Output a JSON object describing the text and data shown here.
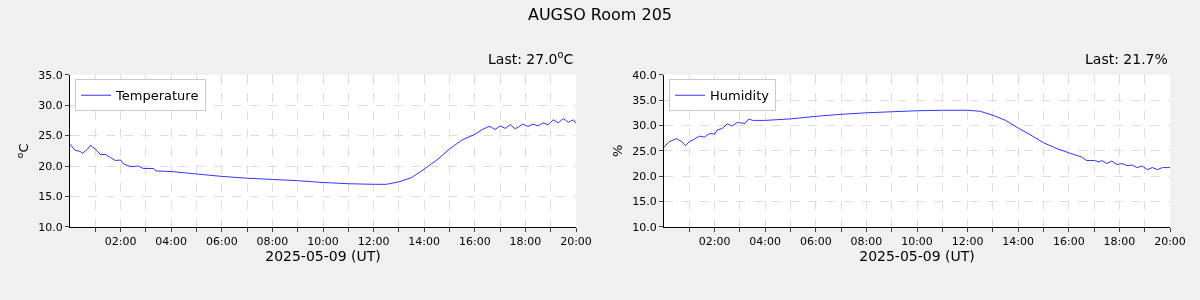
{
  "chart_data": [
    {
      "type": "line",
      "title": "AUGSO Room 205",
      "subtitle": "Last: 27.0$^{o}$C",
      "xlabel": "2025-05-09 (UT)",
      "ylabel": "$^{o}$C",
      "legend": "top left",
      "grid": true,
      "x": [
        0,
        0.2,
        0.4,
        0.5,
        0.7,
        0.8,
        1.0,
        1.2,
        1.4,
        1.6,
        1.8,
        2.0,
        2.1,
        2.4,
        2.7,
        2.9,
        3.3,
        3.4,
        4,
        5,
        6,
        7,
        8,
        9,
        10,
        11,
        12,
        12.5,
        13,
        13.5,
        14,
        14.5,
        15,
        15.5,
        16,
        16.3,
        16.5,
        16.6,
        16.8,
        17.0,
        17.2,
        17.4,
        17.6,
        17.9,
        18.1,
        18.3,
        18.5,
        18.7,
        18.9,
        19.1,
        19.3,
        19.5,
        19.7,
        19.9,
        20
      ],
      "series": [
        {
          "name": "Temperature",
          "color": "#0000ff",
          "values": [
            23.6,
            22.6,
            22.4,
            22.1,
            22.8,
            23.4,
            22.8,
            21.9,
            21.9,
            21.4,
            20.9,
            21.0,
            20.4,
            19.9,
            20.0,
            19.6,
            19.6,
            19.2,
            19.1,
            18.7,
            18.3,
            18.0,
            17.8,
            17.6,
            17.3,
            17.1,
            17.0,
            17.0,
            17.4,
            18.1,
            19.5,
            21.0,
            22.8,
            24.3,
            25.2,
            26.0,
            26.4,
            26.5,
            26.0,
            26.6,
            26.2,
            26.8,
            26.1,
            26.9,
            26.5,
            26.9,
            26.6,
            27.1,
            26.8,
            27.6,
            27.1,
            27.8,
            27.2,
            27.6,
            27.0
          ]
        }
      ],
      "xlim": [
        0,
        20
      ],
      "ylim": [
        10,
        35
      ],
      "xticks": [
        {
          "value": 1,
          "label": null
        },
        {
          "value": 2,
          "label": "02:00"
        },
        {
          "value": 3,
          "label": null
        },
        {
          "value": 4,
          "label": "04:00"
        },
        {
          "value": 5,
          "label": null
        },
        {
          "value": 6,
          "label": "06:00"
        },
        {
          "value": 7,
          "label": null
        },
        {
          "value": 8,
          "label": "08:00"
        },
        {
          "value": 9,
          "label": null
        },
        {
          "value": 10,
          "label": "10:00"
        },
        {
          "value": 11,
          "label": null
        },
        {
          "value": 12,
          "label": "12:00"
        },
        {
          "value": 13,
          "label": null
        },
        {
          "value": 14,
          "label": "14:00"
        },
        {
          "value": 15,
          "label": null
        },
        {
          "value": 16,
          "label": "16:00"
        },
        {
          "value": 17,
          "label": null
        },
        {
          "value": 18,
          "label": "18:00"
        },
        {
          "value": 19,
          "label": null
        },
        {
          "value": 20,
          "label": "20:00"
        }
      ],
      "yticks": [
        {
          "value": 10,
          "label": "10.0"
        },
        {
          "value": 15,
          "label": "15.0"
        },
        {
          "value": 20,
          "label": "20.0"
        },
        {
          "value": 25,
          "label": "25.0"
        },
        {
          "value": 30,
          "label": "30.0"
        },
        {
          "value": 35,
          "label": "35.0"
        }
      ]
    },
    {
      "type": "line",
      "subtitle": "Last: 21.7%",
      "xlabel": "2025-05-09 (UT)",
      "ylabel": "%",
      "legend": "top left",
      "grid": true,
      "x": [
        0,
        0.2,
        0.35,
        0.5,
        0.7,
        0.85,
        1.0,
        1.2,
        1.4,
        1.6,
        1.8,
        2.0,
        2.1,
        2.3,
        2.5,
        2.7,
        2.9,
        3.2,
        3.35,
        3.5,
        4,
        5,
        6,
        7,
        8,
        9,
        10,
        11,
        12,
        12.5,
        13,
        13.5,
        14,
        14.5,
        15,
        15.5,
        16,
        16.5,
        16.7,
        17.0,
        17.2,
        17.3,
        17.5,
        17.7,
        17.9,
        18.1,
        18.3,
        18.5,
        18.7,
        18.9,
        19.1,
        19.3,
        19.5,
        19.7,
        20
      ],
      "series": [
        {
          "name": "Humidity",
          "color": "#0000ff",
          "values": [
            25.7,
            26.8,
            27.1,
            27.4,
            26.8,
            26.0,
            26.8,
            27.3,
            27.9,
            27.7,
            28.4,
            28.3,
            29.1,
            29.4,
            30.3,
            29.9,
            30.6,
            30.4,
            31.3,
            31.0,
            31.0,
            31.3,
            31.8,
            32.2,
            32.5,
            32.7,
            32.9,
            33.0,
            33.0,
            32.8,
            32.0,
            31.0,
            29.5,
            28.1,
            26.6,
            25.5,
            24.6,
            23.8,
            23.1,
            23.1,
            22.8,
            23.1,
            22.5,
            23.0,
            22.3,
            22.5,
            22.1,
            22.2,
            21.7,
            22.0,
            21.3,
            21.7,
            21.3,
            21.7,
            21.7
          ]
        }
      ],
      "xlim": [
        0,
        20
      ],
      "ylim": [
        10,
        40
      ],
      "xticks": [
        {
          "value": 1,
          "label": null
        },
        {
          "value": 2,
          "label": "02:00"
        },
        {
          "value": 3,
          "label": null
        },
        {
          "value": 4,
          "label": "04:00"
        },
        {
          "value": 5,
          "label": null
        },
        {
          "value": 6,
          "label": "06:00"
        },
        {
          "value": 7,
          "label": null
        },
        {
          "value": 8,
          "label": "08:00"
        },
        {
          "value": 9,
          "label": null
        },
        {
          "value": 10,
          "label": "10:00"
        },
        {
          "value": 11,
          "label": null
        },
        {
          "value": 12,
          "label": "12:00"
        },
        {
          "value": 13,
          "label": null
        },
        {
          "value": 14,
          "label": "14:00"
        },
        {
          "value": 15,
          "label": null
        },
        {
          "value": 16,
          "label": "16:00"
        },
        {
          "value": 17,
          "label": null
        },
        {
          "value": 18,
          "label": "18:00"
        },
        {
          "value": 19,
          "label": null
        },
        {
          "value": 20,
          "label": "20:00"
        }
      ],
      "yticks": [
        {
          "value": 10,
          "label": "10.0"
        },
        {
          "value": 15,
          "label": "15.0"
        },
        {
          "value": 20,
          "label": "20.0"
        },
        {
          "value": 25,
          "label": "25.0"
        },
        {
          "value": 30,
          "label": "30.0"
        },
        {
          "value": 35,
          "label": "35.0"
        },
        {
          "value": 40,
          "label": "40.0"
        }
      ]
    }
  ]
}
